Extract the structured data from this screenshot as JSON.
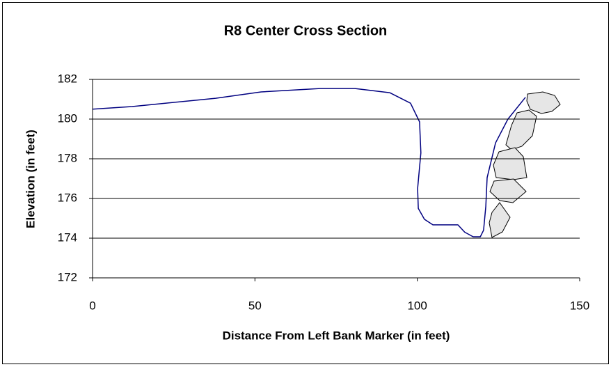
{
  "chart_data": {
    "type": "line",
    "title": "R8 Center Cross Section",
    "x_label": "Distance From Left Bank Marker (in feet)",
    "y_label": "Elevation (in feet)",
    "x": [
      0,
      12.2,
      37.9,
      51.9,
      70,
      80.8,
      91.5,
      97.9,
      100.7,
      101.1,
      100.1,
      100.3,
      102.2,
      104.8,
      112.5,
      114.6,
      117.2,
      119.4,
      120.4,
      121.1,
      121.5,
      124.1,
      127.9,
      133.3
    ],
    "values": [
      180.5,
      180.63,
      181.05,
      181.37,
      181.54,
      181.54,
      181.33,
      180.8,
      179.86,
      178.3,
      176.5,
      175.5,
      174.95,
      174.67,
      174.67,
      174.3,
      174.07,
      174.07,
      174.4,
      175.6,
      177.05,
      178.8,
      180.0,
      181.1
    ],
    "color": "#000080",
    "xlim": [
      0,
      150
    ],
    "xticks": [
      0,
      50,
      100,
      150
    ],
    "ylim": [
      172,
      182
    ],
    "yticks": [
      172,
      174,
      176,
      178,
      180,
      182
    ],
    "grid": true
  }
}
